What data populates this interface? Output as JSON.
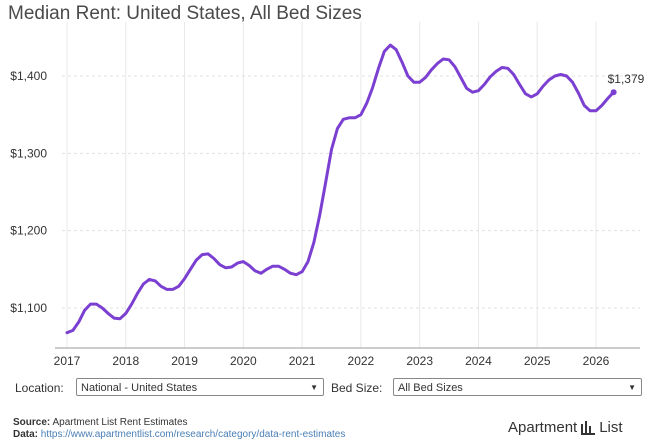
{
  "title": "Median Rent: United States, All Bed Sizes",
  "end_label": "$1,379",
  "controls": {
    "location_label": "Location:",
    "location_value": "National - United States",
    "bedsize_label": "Bed Size:",
    "bedsize_value": "All Bed Sizes"
  },
  "footer": {
    "source_label": "Source:",
    "source_text": "Apartment List Rent Estimates",
    "data_label": "Data:",
    "data_text": "https://www.apartmentlist.com/research/category/data-rent-estimates"
  },
  "logo": {
    "left_text": "Apartment",
    "right_text": "List",
    "icon": "building-bars-icon"
  },
  "colors": {
    "line": "#7b3fd1",
    "accent": "#6a3fbf"
  },
  "chart_data": {
    "type": "line",
    "title": "Median Rent: United States, All Bed Sizes",
    "xlabel": "",
    "ylabel": "",
    "xlim": [
      2017,
      2026.6
    ],
    "ylim": [
      1050,
      1455
    ],
    "x_ticks": [
      {
        "value": 2017,
        "label": "2017"
      },
      {
        "value": 2018,
        "label": "2018"
      },
      {
        "value": 2019,
        "label": "2019"
      },
      {
        "value": 2020,
        "label": "2020"
      },
      {
        "value": 2021,
        "label": "2021"
      },
      {
        "value": 2022,
        "label": "2022"
      },
      {
        "value": 2023,
        "label": "2023"
      },
      {
        "value": 2024,
        "label": "2024"
      },
      {
        "value": 2025,
        "label": "2025"
      },
      {
        "value": 2026,
        "label": "2026"
      }
    ],
    "y_ticks": [
      {
        "value": 1100,
        "label": "$1,100"
      },
      {
        "value": 1200,
        "label": "$1,200"
      },
      {
        "value": 1300,
        "label": "$1,300"
      },
      {
        "value": 1400,
        "label": "$1,400"
      }
    ],
    "grid": "on",
    "series": [
      {
        "color": "#7b3fd1",
        "x": [
          2017.0,
          2017.1,
          2017.2,
          2017.3,
          2017.4,
          2017.5,
          2017.6,
          2017.7,
          2017.8,
          2017.9,
          2018.0,
          2018.1,
          2018.2,
          2018.3,
          2018.4,
          2018.5,
          2018.6,
          2018.7,
          2018.8,
          2018.9,
          2019.0,
          2019.1,
          2019.2,
          2019.3,
          2019.4,
          2019.5,
          2019.6,
          2019.7,
          2019.8,
          2019.9,
          2020.0,
          2020.1,
          2020.2,
          2020.3,
          2020.4,
          2020.5,
          2020.6,
          2020.7,
          2020.8,
          2020.9,
          2021.0,
          2021.1,
          2021.2,
          2021.3,
          2021.4,
          2021.5,
          2021.6,
          2021.7,
          2021.8,
          2021.9,
          2022.0,
          2022.1,
          2022.2,
          2022.3,
          2022.4,
          2022.5,
          2022.6,
          2022.7,
          2022.8,
          2022.9,
          2023.0,
          2023.1,
          2023.2,
          2023.3,
          2023.4,
          2023.5,
          2023.6,
          2023.7,
          2023.8,
          2023.9,
          2024.0,
          2024.1,
          2024.2,
          2024.3,
          2024.4,
          2024.5,
          2024.6,
          2024.7,
          2024.8,
          2024.9,
          2025.0,
          2025.1,
          2025.2,
          2025.3,
          2025.4,
          2025.5,
          2025.6,
          2025.7,
          2025.8,
          2025.9,
          2026.0,
          2026.1,
          2026.2,
          2026.3
        ],
        "y": [
          1068,
          1071,
          1082,
          1097,
          1105,
          1105,
          1100,
          1093,
          1087,
          1086,
          1093,
          1105,
          1119,
          1131,
          1137,
          1135,
          1128,
          1124,
          1124,
          1128,
          1138,
          1150,
          1162,
          1169,
          1170,
          1164,
          1156,
          1152,
          1153,
          1158,
          1160,
          1155,
          1148,
          1145,
          1150,
          1154,
          1154,
          1150,
          1145,
          1143,
          1147,
          1160,
          1185,
          1220,
          1262,
          1305,
          1332,
          1344,
          1346,
          1346,
          1350,
          1365,
          1385,
          1410,
          1432,
          1440,
          1434,
          1418,
          1400,
          1392,
          1392,
          1398,
          1408,
          1416,
          1422,
          1421,
          1412,
          1398,
          1384,
          1379,
          1381,
          1389,
          1399,
          1406,
          1411,
          1410,
          1402,
          1389,
          1377,
          1373,
          1377,
          1387,
          1395,
          1400,
          1402,
          1400,
          1392,
          1378,
          1362,
          1355,
          1355,
          1362,
          1371,
          1379
        ]
      }
    ]
  }
}
